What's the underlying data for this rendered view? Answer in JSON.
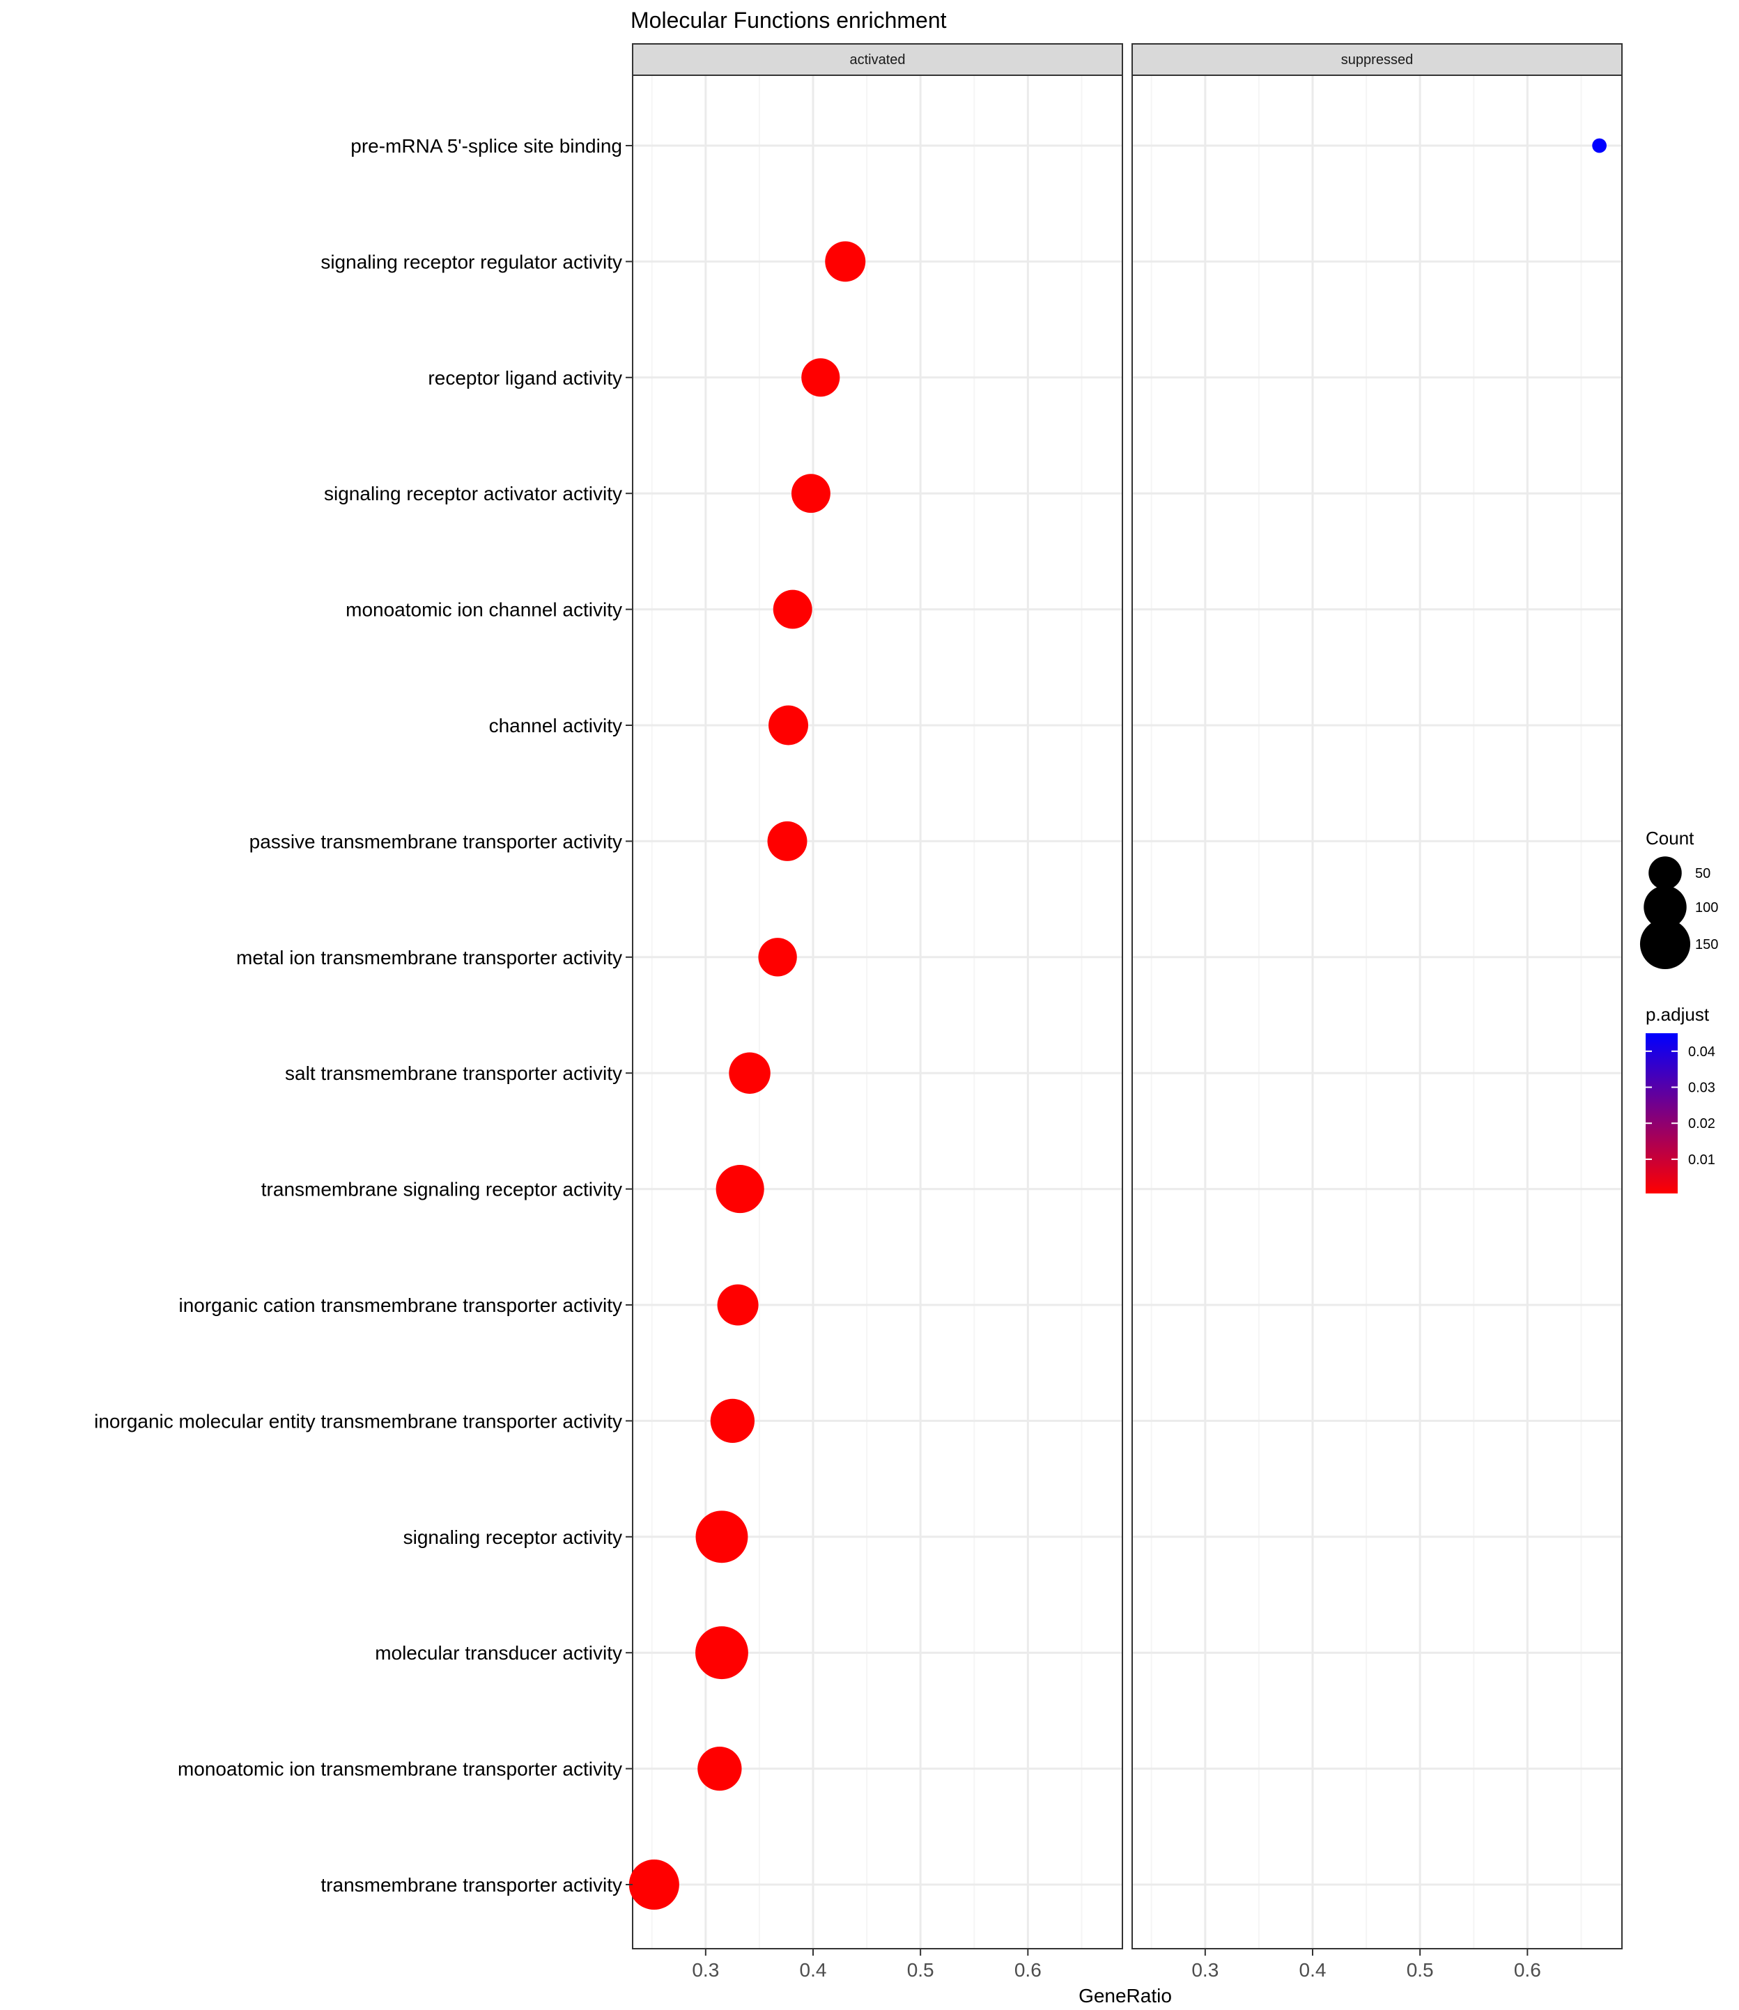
{
  "chart_data": {
    "type": "scatter",
    "title": "Molecular Functions enrichment",
    "xlabel": "GeneRatio",
    "ylabel": "",
    "xlim": [
      0.232,
      0.688
    ],
    "x_ticks": [
      0.3,
      0.4,
      0.5,
      0.6
    ],
    "x_tick_labels": [
      "0.3",
      "0.4",
      "0.5",
      "0.6"
    ],
    "panels": [
      "activated",
      "suppressed"
    ],
    "grid": true,
    "categories": [
      "pre-mRNA 5'-splice site binding",
      "signaling receptor regulator activity",
      "receptor ligand activity",
      "signaling receptor activator activity",
      "monoatomic ion channel activity",
      "channel activity",
      "passive transmembrane transporter activity",
      "metal ion transmembrane transporter activity",
      "salt transmembrane transporter activity",
      "transmembrane signaling receptor activity",
      "inorganic cation transmembrane transporter activity",
      "inorganic molecular entity transmembrane transporter activity",
      "signaling receptor activity",
      "molecular transducer activity",
      "monoatomic ion transmembrane transporter activity",
      "transmembrane transporter activity"
    ],
    "points": [
      {
        "panel": "suppressed",
        "category": "pre-mRNA 5'-splice site binding",
        "x": 0.667,
        "count": 2,
        "p_adjust": 0.045
      },
      {
        "panel": "activated",
        "category": "signaling receptor regulator activity",
        "x": 0.43,
        "count": 86,
        "p_adjust": 0.0005
      },
      {
        "panel": "activated",
        "category": "receptor ligand activity",
        "x": 0.407,
        "count": 75,
        "p_adjust": 0.0005
      },
      {
        "panel": "activated",
        "category": "signaling receptor activator activity",
        "x": 0.398,
        "count": 78,
        "p_adjust": 0.0005
      },
      {
        "panel": "activated",
        "category": "monoatomic ion channel activity",
        "x": 0.381,
        "count": 78,
        "p_adjust": 0.0005
      },
      {
        "panel": "activated",
        "category": "channel activity",
        "x": 0.377,
        "count": 82,
        "p_adjust": 0.0005
      },
      {
        "panel": "activated",
        "category": "passive transmembrane transporter activity",
        "x": 0.376,
        "count": 82,
        "p_adjust": 0.0005
      },
      {
        "panel": "activated",
        "category": "metal ion transmembrane transporter activity",
        "x": 0.367,
        "count": 76,
        "p_adjust": 0.0005
      },
      {
        "panel": "activated",
        "category": "salt transmembrane transporter activity",
        "x": 0.341,
        "count": 92,
        "p_adjust": 0.0005
      },
      {
        "panel": "activated",
        "category": "transmembrane signaling receptor activity",
        "x": 0.332,
        "count": 135,
        "p_adjust": 0.0005
      },
      {
        "panel": "activated",
        "category": "inorganic cation transmembrane transporter activity",
        "x": 0.33,
        "count": 90,
        "p_adjust": 0.0005
      },
      {
        "panel": "activated",
        "category": "inorganic molecular entity transmembrane transporter activity",
        "x": 0.325,
        "count": 108,
        "p_adjust": 0.0005
      },
      {
        "panel": "activated",
        "category": "signaling receptor activity",
        "x": 0.315,
        "count": 165,
        "p_adjust": 0.0005
      },
      {
        "panel": "activated",
        "category": "molecular transducer activity",
        "x": 0.315,
        "count": 170,
        "p_adjust": 0.0005
      },
      {
        "panel": "activated",
        "category": "monoatomic ion transmembrane transporter activity",
        "x": 0.313,
        "count": 108,
        "p_adjust": 0.0005
      },
      {
        "panel": "activated",
        "category": "transmembrane transporter activity",
        "x": 0.252,
        "count": 150,
        "p_adjust": 0.0005
      }
    ],
    "legend_count": {
      "title": "Count",
      "values": [
        50,
        100,
        150
      ],
      "labels": [
        "50",
        "100",
        "150"
      ],
      "color": "#000000",
      "position": "right"
    },
    "legend_padjust": {
      "title": "p.adjust",
      "range": [
        0.0005,
        0.045
      ],
      "ticks": [
        0.01,
        0.02,
        0.03,
        0.04
      ],
      "tick_labels": [
        "0.01",
        "0.02",
        "0.03",
        "0.04"
      ],
      "low_color": "#ff0000",
      "high_color": "#0000ff",
      "position": "right"
    },
    "colors": {
      "panel_border": "#333333",
      "strip_fill": "#d9d9d9",
      "grid_major": "#ebebeb",
      "grid_minor": "#f5f5f5"
    }
  }
}
